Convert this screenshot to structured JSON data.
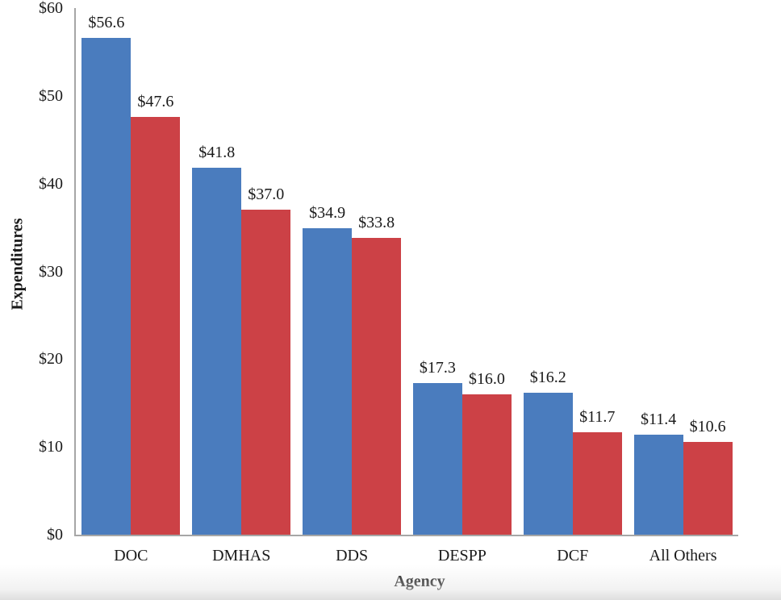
{
  "page": {
    "background": "#ffffff",
    "axis_color": "#a6a6a6"
  },
  "chart_data": {
    "type": "bar",
    "title": "",
    "xlabel": "Agency",
    "ylabel": "Expenditures",
    "categories": [
      "DOC",
      "DMHAS",
      "DDS",
      "DESPP",
      "DCF",
      "All Others"
    ],
    "series": [
      {
        "name": "series-blue",
        "color": "#4A7CBE",
        "values": [
          56.6,
          41.8,
          34.9,
          17.3,
          16.2,
          11.4
        ],
        "labels": [
          "$56.6",
          "$41.8",
          "$34.9",
          "$17.3",
          "$16.2",
          "$11.4"
        ]
      },
      {
        "name": "series-red",
        "color": "#CC4146",
        "values": [
          47.6,
          37.0,
          33.8,
          16.0,
          11.7,
          10.6
        ],
        "labels": [
          "$47.6",
          "$37.0",
          "$33.8",
          "$16.0",
          "$11.7",
          "$10.6"
        ]
      }
    ],
    "y_ticks": [
      {
        "label": "$60",
        "value": 60
      },
      {
        "label": "$50",
        "value": 50
      },
      {
        "label": "$40",
        "value": 40
      },
      {
        "label": "$30",
        "value": 30
      },
      {
        "label": "$20",
        "value": 20
      },
      {
        "label": "$10",
        "value": 10
      },
      {
        "label": "$0",
        "value": 0
      }
    ],
    "ylim": [
      0,
      60
    ],
    "grid": false,
    "legend": "none"
  }
}
